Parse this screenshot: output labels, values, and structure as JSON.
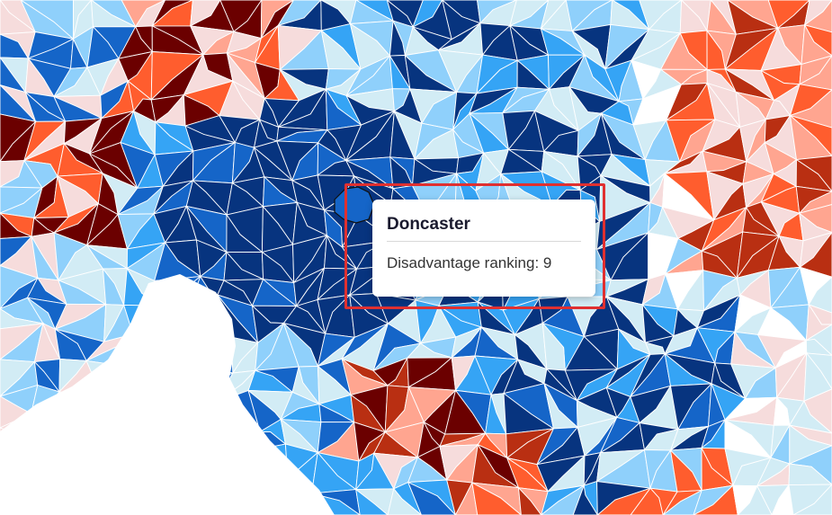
{
  "map": {
    "colors": {
      "darkest_red": "#6b0000",
      "dark_red": "#b92f12",
      "red": "#ff5d2e",
      "light_red": "#ffa590",
      "pale_red": "#f6dcdc",
      "pale_blue": "#d2ecf5",
      "light_blue": "#8fd0fb",
      "blue": "#35a4f5",
      "medium_blue": "#1565c8",
      "dark_blue": "#07347f",
      "water": "#ffffff"
    }
  },
  "tooltip": {
    "region_name": "Doncaster",
    "metric_label": "Disadvantage ranking",
    "metric_value": 9,
    "metric_text": "Disadvantage ranking: 9"
  }
}
